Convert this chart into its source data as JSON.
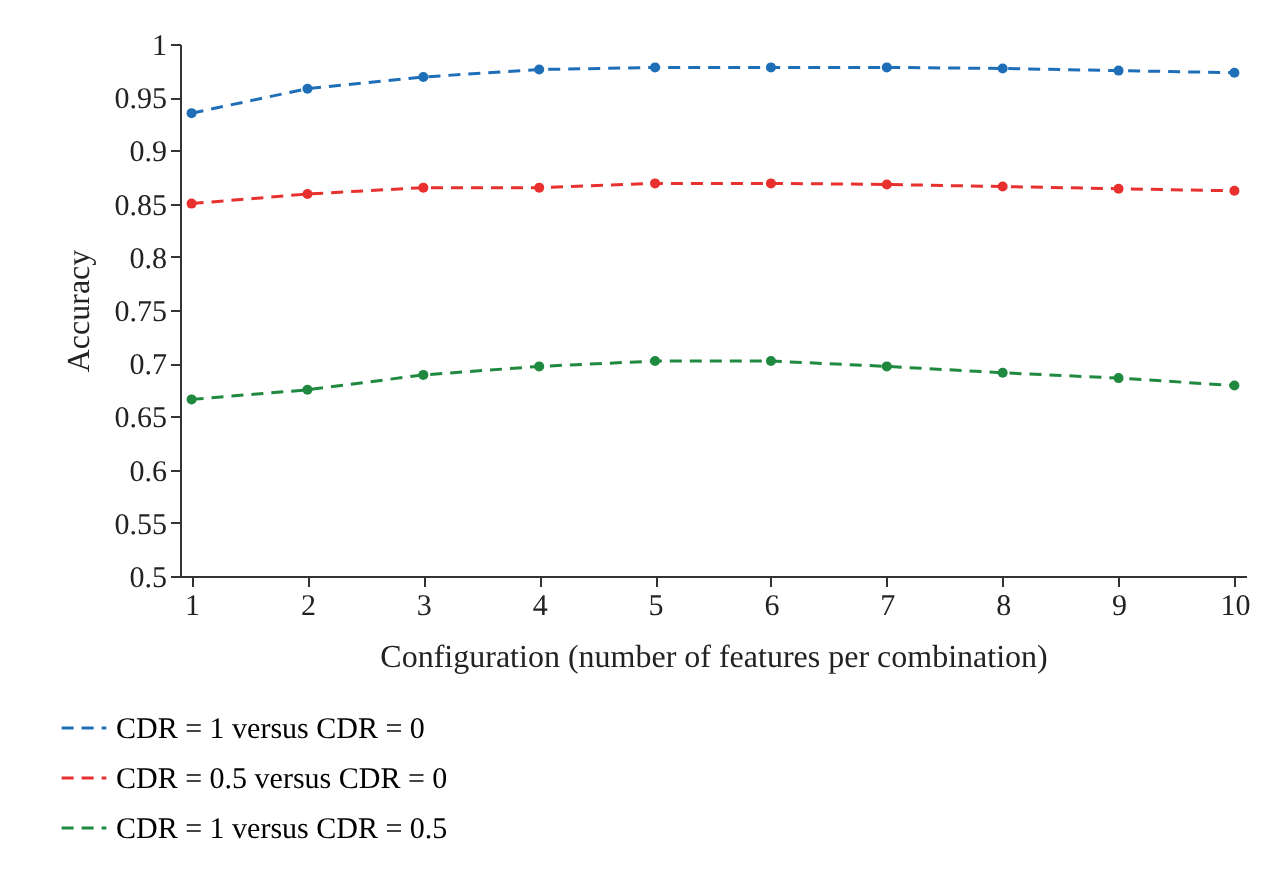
{
  "chart_data": {
    "type": "line",
    "xlabel": "Configuration (number of features per combination)",
    "ylabel": "Accuracy",
    "x": [
      1,
      2,
      3,
      4,
      5,
      6,
      7,
      8,
      9,
      10
    ],
    "series": [
      {
        "name": "CDR = 1 versus CDR = 0",
        "color": "#1f6fb8",
        "values": [
          0.935,
          0.958,
          0.969,
          0.976,
          0.978,
          0.978,
          0.978,
          0.977,
          0.975,
          0.973
        ]
      },
      {
        "name": "CDR = 0.5 versus CDR = 0",
        "color": "#e8312f",
        "values": [
          0.85,
          0.859,
          0.865,
          0.865,
          0.869,
          0.869,
          0.868,
          0.866,
          0.864,
          0.862
        ]
      },
      {
        "name": "CDR = 1 versus CDR = 0.5",
        "color": "#1f8a3f",
        "values": [
          0.666,
          0.675,
          0.689,
          0.697,
          0.702,
          0.702,
          0.697,
          0.691,
          0.686,
          0.679
        ]
      }
    ],
    "xlim": [
      0.9,
      10.1
    ],
    "xticks": [
      1,
      2,
      3,
      4,
      5,
      6,
      7,
      8,
      9,
      10
    ],
    "ylim": [
      0.5,
      1
    ],
    "yticks": [
      0.5,
      0.55,
      0.6,
      0.65,
      0.7,
      0.75,
      0.8,
      0.85,
      0.9,
      0.95,
      1
    ],
    "grid": false,
    "legend": "bottom left",
    "marker": "circle",
    "line_style": "dashed"
  }
}
